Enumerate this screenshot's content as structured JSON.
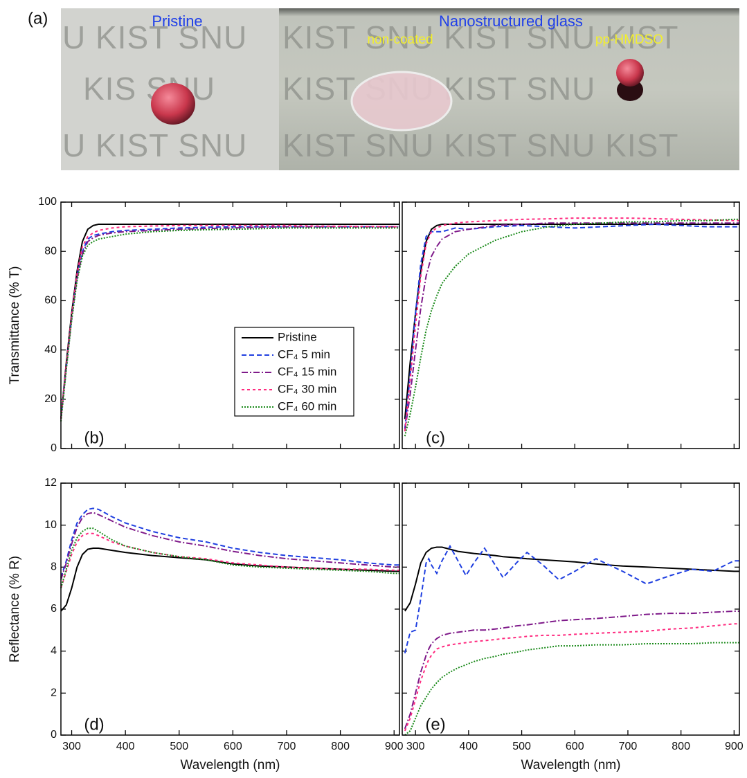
{
  "photo": {
    "label": "(a)",
    "captions": [
      "Pristine",
      "Nanostructured glass",
      "non-coated",
      "pp-HMDSO"
    ],
    "watermark": [
      "U KIST SNU",
      "KIST SNU KIST SNU KIST",
      "KIS   SNU",
      "KIST SNU KIST SNU",
      "U KIST SNU",
      "KIST SNU KIST SNU KIST"
    ]
  },
  "chart_data": [
    {
      "type": "line",
      "panel_label": "(b)",
      "ylabel": "Transmittance (% T)",
      "x": [
        280,
        290,
        300,
        310,
        320,
        330,
        340,
        350,
        375,
        400,
        450,
        500,
        550,
        600,
        650,
        700,
        750,
        800,
        850,
        900,
        910
      ],
      "xlim": [
        280,
        910
      ],
      "ylim": [
        0,
        100
      ],
      "yticks": [
        0,
        20,
        40,
        60,
        80,
        100
      ],
      "series": [
        {
          "name": "Pristine",
          "color": "#000000",
          "dash": "solid",
          "values": [
            12,
            35,
            55,
            72,
            84,
            89,
            90.5,
            91,
            91,
            91,
            91,
            91,
            91,
            91,
            91,
            91,
            91,
            91,
            91,
            91,
            91
          ]
        },
        {
          "name": "CF₄ 5 min",
          "color": "#1f3fe0",
          "dash": "dashed",
          "values": [
            12,
            33,
            53,
            70,
            80,
            85,
            86.5,
            87,
            88,
            88.5,
            89,
            89.5,
            89.8,
            90,
            90,
            90,
            90,
            90,
            90,
            90,
            90
          ]
        },
        {
          "name": "CF₄ 15 min",
          "color": "#7f1a8a",
          "dash": "dashdot",
          "values": [
            12,
            33,
            53,
            69,
            79,
            84,
            85.5,
            86.5,
            87.5,
            88,
            88.5,
            89,
            89.3,
            89.5,
            89.8,
            90,
            90,
            90,
            90,
            90,
            90
          ]
        },
        {
          "name": "CF₄ 30 min",
          "color": "#ff2a7f",
          "dash": "shortdash",
          "values": [
            12,
            34,
            54,
            71,
            82,
            86,
            87.5,
            88.5,
            89.5,
            90,
            90.3,
            90.5,
            90.5,
            90.5,
            90.5,
            90.5,
            90.3,
            90.2,
            90.1,
            90,
            90
          ]
        },
        {
          "name": "CF₄ 60 min",
          "color": "#1a8a1a",
          "dash": "dotted",
          "values": [
            11,
            32,
            52,
            68,
            78,
            82.5,
            84,
            85,
            86,
            87,
            88,
            88.5,
            88.8,
            89,
            89.2,
            89.5,
            89.5,
            89.5,
            89.5,
            89.5,
            89.5
          ]
        }
      ]
    },
    {
      "type": "line",
      "panel_label": "(c)",
      "x": [
        280,
        290,
        300,
        310,
        320,
        330,
        340,
        350,
        375,
        400,
        450,
        500,
        550,
        600,
        650,
        700,
        750,
        800,
        850,
        900,
        910
      ],
      "xlim": [
        275,
        910
      ],
      "ylim": [
        0,
        100
      ],
      "series": [
        {
          "color": "#000000",
          "dash": "solid",
          "values": [
            12,
            35,
            55,
            72,
            84,
            89,
            90.5,
            91,
            91,
            91,
            91,
            91,
            91,
            91,
            91,
            91,
            91,
            91,
            91,
            91,
            91
          ]
        },
        {
          "color": "#1f3fe0",
          "dash": "dashed",
          "values": [
            8,
            30,
            55,
            75,
            86,
            88,
            88,
            88,
            89.5,
            89,
            90,
            90.5,
            90,
            89.5,
            90,
            90.5,
            91,
            90.5,
            90,
            90,
            90
          ]
        },
        {
          "color": "#7f1a8a",
          "dash": "dashdot",
          "values": [
            7,
            22,
            40,
            57,
            70,
            78,
            82,
            85,
            88,
            89,
            90.5,
            91,
            91.5,
            91.5,
            91.5,
            91.5,
            91.5,
            91.5,
            91.5,
            91.5,
            91.5
          ]
        },
        {
          "color": "#ff2a7f",
          "dash": "shortdash",
          "values": [
            7,
            28,
            50,
            70,
            83,
            88,
            89.5,
            90.5,
            91.5,
            92,
            92.5,
            93,
            93.2,
            93.5,
            93.5,
            93.5,
            93.3,
            93,
            92.8,
            92.5,
            92.5
          ]
        },
        {
          "color": "#1a8a1a",
          "dash": "dotted",
          "values": [
            5,
            14,
            25,
            37,
            48,
            56,
            62,
            67,
            74,
            79,
            84.5,
            88,
            90,
            91,
            91.5,
            92,
            92,
            92.5,
            92.5,
            93,
            93
          ]
        }
      ]
    },
    {
      "type": "line",
      "panel_label": "(d)",
      "ylabel": "Reflectance (% R)",
      "xlabel": "Wavelength (nm)",
      "x": [
        280,
        290,
        300,
        310,
        320,
        330,
        340,
        350,
        375,
        400,
        450,
        500,
        550,
        600,
        650,
        700,
        750,
        800,
        850,
        900,
        910
      ],
      "xlim": [
        280,
        910
      ],
      "xticks": [
        300,
        400,
        500,
        600,
        700,
        800,
        900
      ],
      "ylim": [
        0,
        12
      ],
      "yticks": [
        0,
        2,
        4,
        6,
        8,
        10,
        12
      ],
      "series": [
        {
          "color": "#000000",
          "dash": "solid",
          "values": [
            5.9,
            6.2,
            7.0,
            8.0,
            8.6,
            8.85,
            8.9,
            8.9,
            8.8,
            8.7,
            8.55,
            8.45,
            8.35,
            8.15,
            8.05,
            8.0,
            7.95,
            7.9,
            7.85,
            7.8,
            7.8
          ]
        },
        {
          "color": "#1f3fe0",
          "dash": "dashed",
          "values": [
            7.5,
            8.3,
            9.3,
            10.1,
            10.5,
            10.75,
            10.8,
            10.75,
            10.4,
            10.1,
            9.7,
            9.4,
            9.2,
            8.9,
            8.7,
            8.55,
            8.45,
            8.35,
            8.2,
            8.1,
            8.1
          ]
        },
        {
          "color": "#7f1a8a",
          "dash": "dashdot",
          "values": [
            7.4,
            8.2,
            9.1,
            9.9,
            10.35,
            10.55,
            10.6,
            10.5,
            10.2,
            9.9,
            9.5,
            9.2,
            9.0,
            8.75,
            8.55,
            8.4,
            8.3,
            8.2,
            8.1,
            8.0,
            8.0
          ]
        },
        {
          "color": "#ff2a7f",
          "dash": "shortdash",
          "values": [
            7.0,
            7.8,
            8.6,
            9.2,
            9.5,
            9.6,
            9.6,
            9.5,
            9.2,
            9.0,
            8.7,
            8.5,
            8.4,
            8.2,
            8.1,
            8.0,
            7.95,
            7.9,
            7.9,
            7.85,
            7.85
          ]
        },
        {
          "color": "#1a8a1a",
          "dash": "dotted",
          "values": [
            7.0,
            7.9,
            8.8,
            9.4,
            9.7,
            9.85,
            9.85,
            9.7,
            9.3,
            9.0,
            8.7,
            8.5,
            8.35,
            8.1,
            8.0,
            7.95,
            7.9,
            7.85,
            7.8,
            7.7,
            7.7
          ]
        }
      ]
    },
    {
      "type": "line",
      "panel_label": "(e)",
      "xlabel": "Wavelength (nm)",
      "x": [
        280,
        290,
        300,
        310,
        320,
        325,
        330,
        340,
        350,
        365,
        380,
        395,
        410,
        430,
        450,
        465,
        490,
        510,
        540,
        570,
        600,
        640,
        690,
        735,
        780,
        820,
        860,
        900,
        910
      ],
      "xlim": [
        275,
        910
      ],
      "xticks": [
        300,
        400,
        500,
        600,
        700,
        800,
        900
      ],
      "ylim": [
        0,
        12
      ],
      "series": [
        {
          "color": "#000000",
          "dash": "solid",
          "values": [
            5.9,
            6.3,
            7.2,
            8.2,
            8.7,
            8.8,
            8.9,
            8.95,
            8.95,
            8.85,
            8.75,
            8.7,
            8.65,
            8.6,
            8.55,
            8.5,
            8.45,
            8.4,
            8.35,
            8.3,
            8.25,
            8.15,
            8.05,
            8.0,
            7.95,
            7.9,
            7.85,
            7.8,
            7.8
          ]
        },
        {
          "color": "#1f3fe0",
          "dash": "dashed",
          "values": [
            3.9,
            4.9,
            5.0,
            6.5,
            8.2,
            8.4,
            8.1,
            7.7,
            8.3,
            9.0,
            8.3,
            7.6,
            8.2,
            8.9,
            8.1,
            7.5,
            8.2,
            8.7,
            8.1,
            7.4,
            7.8,
            8.4,
            7.8,
            7.2,
            7.6,
            7.9,
            7.8,
            8.3,
            8.3
          ]
        },
        {
          "color": "#7f1a8a",
          "dash": "dashdot",
          "values": [
            0.3,
            1.0,
            2.0,
            3.0,
            3.8,
            4.1,
            4.35,
            4.6,
            4.75,
            4.85,
            4.9,
            4.95,
            5.0,
            5.0,
            5.05,
            5.1,
            5.2,
            5.25,
            5.35,
            5.45,
            5.5,
            5.55,
            5.65,
            5.75,
            5.8,
            5.8,
            5.85,
            5.9,
            5.9
          ]
        },
        {
          "color": "#ff2a7f",
          "dash": "shortdash",
          "values": [
            0.2,
            0.8,
            1.7,
            2.6,
            3.3,
            3.6,
            3.8,
            4.1,
            4.2,
            4.3,
            4.35,
            4.4,
            4.45,
            4.5,
            4.55,
            4.6,
            4.65,
            4.7,
            4.75,
            4.75,
            4.8,
            4.85,
            4.9,
            4.95,
            5.05,
            5.1,
            5.2,
            5.3,
            5.3
          ]
        },
        {
          "color": "#1a8a1a",
          "dash": "dotted",
          "values": [
            0,
            0.2,
            0.8,
            1.4,
            1.8,
            2.0,
            2.2,
            2.5,
            2.75,
            3.0,
            3.2,
            3.35,
            3.5,
            3.65,
            3.75,
            3.85,
            3.95,
            4.05,
            4.15,
            4.25,
            4.25,
            4.3,
            4.3,
            4.35,
            4.35,
            4.35,
            4.4,
            4.4,
            4.4
          ]
        }
      ]
    }
  ]
}
